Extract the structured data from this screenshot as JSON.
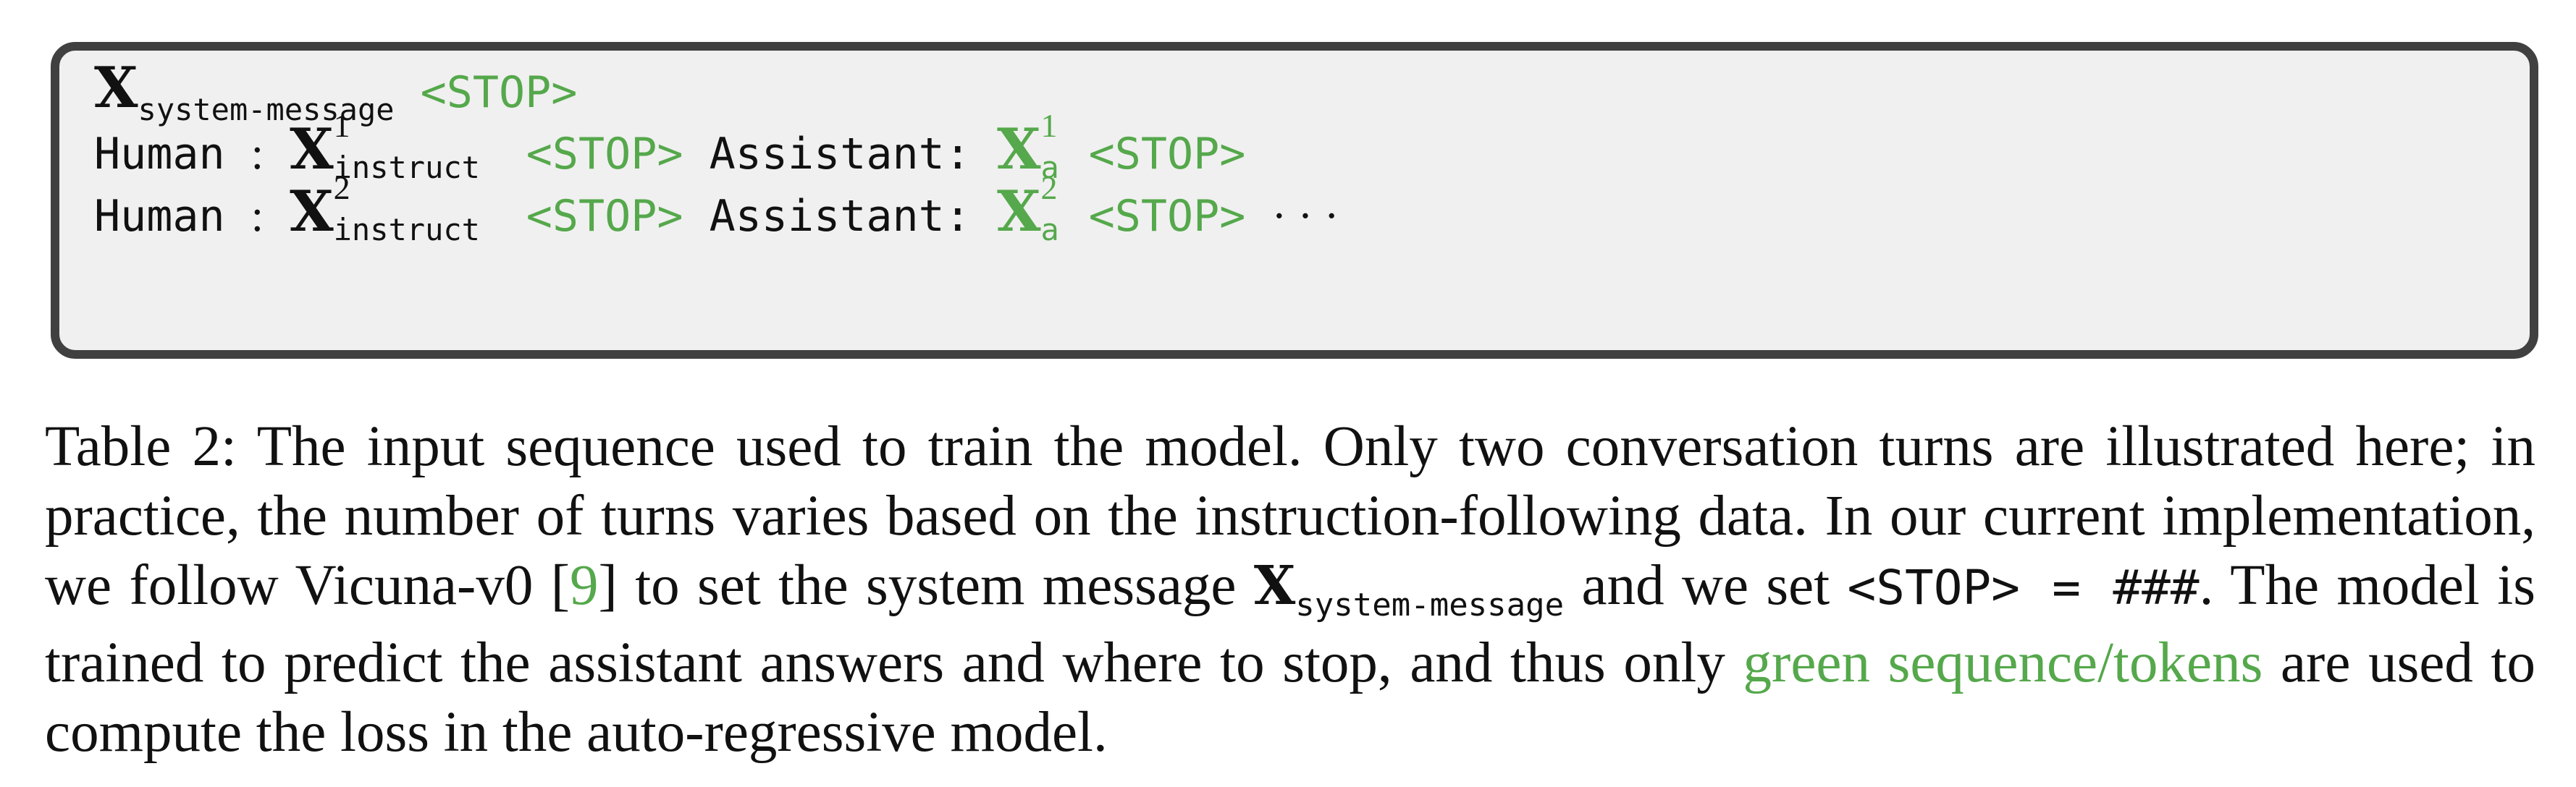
{
  "sequence_box": {
    "line1": {
      "x_symbol": "X",
      "x_subscript": "system-message",
      "stop": "<STOP>"
    },
    "line2": {
      "human_label": "Human",
      "colon": ":",
      "x_symbol": "X",
      "x_superscript": "1",
      "x_subscript": "instruct",
      "stop1": "<STOP>",
      "assistant_label": "Assistant:",
      "xa_symbol": "X",
      "xa_superscript": "1",
      "xa_subscript": "a",
      "stop2": "<STOP>"
    },
    "line3": {
      "human_label": "Human",
      "colon": ":",
      "x_symbol": "X",
      "x_superscript": "2",
      "x_subscript": "instruct",
      "stop1": "<STOP>",
      "assistant_label": "Assistant:",
      "xa_symbol": "X",
      "xa_superscript": "2",
      "xa_subscript": "a",
      "stop2": "<STOP>",
      "ellipsis": "· · ·"
    }
  },
  "caption": {
    "part1": "Table 2: The input sequence used to train the model. Only two conversation turns are illustrated here; in practice, the number of turns varies based on the instruction-following data. In our current implementation, we follow Vicuna-v0 [",
    "citation": "9",
    "part2": "] to set the system message ",
    "x_symbol": "X",
    "x_subscript": "system-message",
    "part3": " and we set ",
    "stop_code": "<STOP> = ###",
    "part4": ". The model is trained to predict the assistant answers and where to stop, and thus only ",
    "green_text": "green sequence/tokens",
    "part5": " are used to compute the loss in the auto-regressive model."
  },
  "colors": {
    "green": "#55a84b",
    "box_border": "#404040",
    "box_background": "#f0f0f0",
    "text": "#111111"
  }
}
